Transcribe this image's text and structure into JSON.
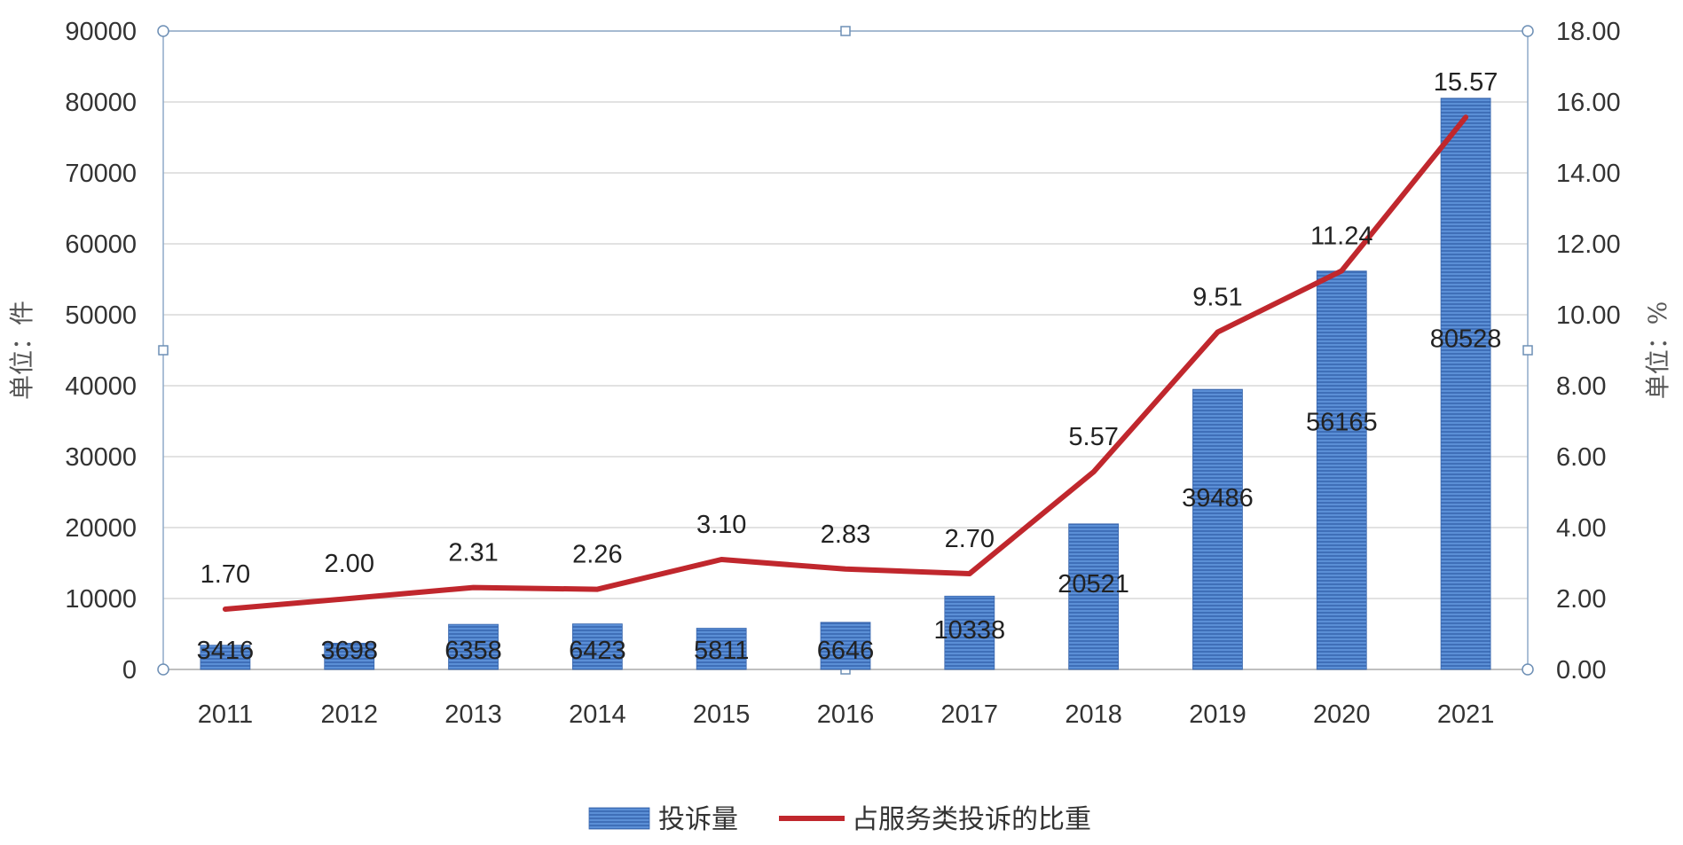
{
  "chart_data": {
    "type": "bar",
    "categories": [
      "2011",
      "2012",
      "2013",
      "2014",
      "2015",
      "2016",
      "2017",
      "2018",
      "2019",
      "2020",
      "2021"
    ],
    "series": [
      {
        "name": "投诉量",
        "type": "bar",
        "axis": "left",
        "values": [
          3416,
          3698,
          6358,
          6423,
          5811,
          6646,
          10338,
          20521,
          39486,
          56165,
          80528
        ],
        "labels": [
          "3416",
          "3698",
          "6358",
          "6423",
          "5811",
          "6646",
          "10338",
          "20521",
          "39486",
          "56165",
          "80528"
        ],
        "color": "#4a7cc6"
      },
      {
        "name": "占服务类投诉的比重",
        "type": "line",
        "axis": "right",
        "values": [
          1.7,
          2.0,
          2.31,
          2.26,
          3.1,
          2.83,
          2.7,
          5.57,
          9.51,
          11.24,
          15.57
        ],
        "labels": [
          "1.70",
          "2.00",
          "2.31",
          "2.26",
          "3.10",
          "2.83",
          "2.70",
          "5.57",
          "9.51",
          "11.24",
          "15.57"
        ],
        "color": "#c0272d"
      }
    ],
    "ylabel": "单位：件",
    "y2label": "单位：%",
    "ylim": [
      0,
      90000
    ],
    "y2lim": [
      0,
      18
    ],
    "yticks": [
      "0",
      "10000",
      "20000",
      "30000",
      "40000",
      "50000",
      "60000",
      "70000",
      "80000",
      "90000"
    ],
    "y2ticks": [
      "0.00",
      "2.00",
      "4.00",
      "6.00",
      "8.00",
      "10.00",
      "12.00",
      "14.00",
      "16.00",
      "18.00"
    ],
    "grid": true,
    "legend_position": "bottom"
  }
}
